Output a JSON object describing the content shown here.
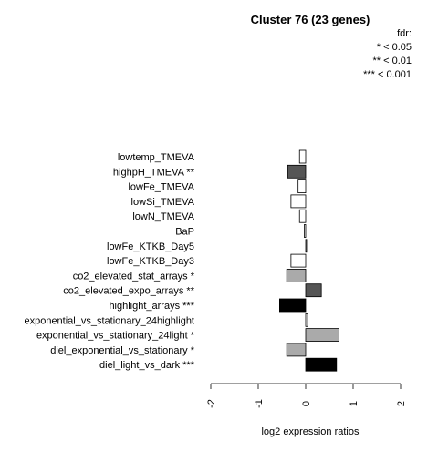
{
  "chart_data": {
    "type": "bar",
    "orientation": "horizontal",
    "title": "Cluster 76 (23 genes)",
    "legend": {
      "title": "fdr:",
      "entries": [
        "* < 0.05",
        "** < 0.01",
        "*** < 0.001"
      ],
      "placement": "top-right"
    },
    "xlabel": "log2 expression ratios",
    "xlim": [
      -2,
      2
    ],
    "xticks": [
      "-2",
      "-1",
      "0",
      "1",
      "2"
    ],
    "xtick_values": [
      -2,
      -1,
      0,
      1,
      2
    ],
    "categories": [
      "lowtemp_TMEVA",
      "highpH_TMEVA **",
      "lowFe_TMEVA",
      "lowSi_TMEVA",
      "lowN_TMEVA",
      "BaP",
      "lowFe_KTKB_Day5",
      "lowFe_KTKB_Day3",
      "co2_elevated_stat_arrays *",
      "co2_elevated_expo_arrays **",
      "highlight_arrays ***",
      "exponential_vs_stationary_24highlight",
      "exponential_vs_stationary_24light *",
      "diel_exponential_vs_stationary *",
      "diel_light_vs_dark ***"
    ],
    "values": [
      -0.13,
      -0.38,
      -0.16,
      -0.31,
      -0.13,
      -0.03,
      0.01,
      -0.31,
      -0.4,
      0.33,
      -0.55,
      0.04,
      0.7,
      -0.4,
      0.65
    ],
    "bar_colors": [
      "#ffffff",
      "#555555",
      "#ffffff",
      "#ffffff",
      "#ffffff",
      "#ffffff",
      "#ffffff",
      "#ffffff",
      "#aaaaaa",
      "#555555",
      "#000000",
      "#ffffff",
      "#aaaaaa",
      "#aaaaaa",
      "#000000"
    ]
  }
}
